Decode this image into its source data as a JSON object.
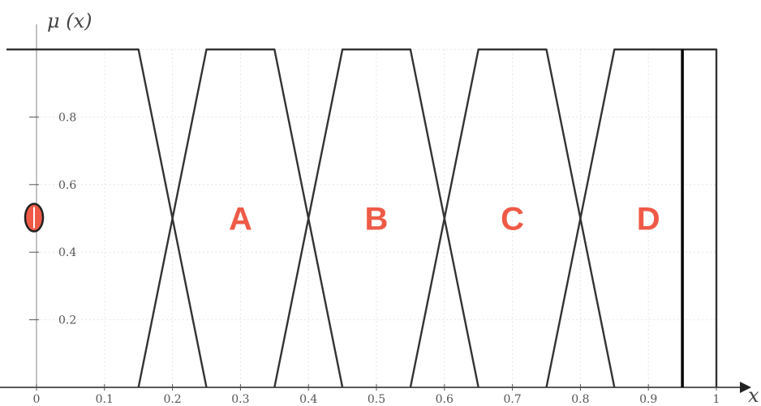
{
  "chart_data": {
    "type": "line",
    "xlabel": "x",
    "ylabel": "μ (x)",
    "xlim": [
      0,
      1
    ],
    "ylim": [
      0,
      1
    ],
    "x_ticks": [
      "0",
      "0.1",
      "0.2",
      "0.3",
      "0.4",
      "0.5",
      "0.6",
      "0.7",
      "0.8",
      "0.9",
      "1"
    ],
    "y_ticks": [
      "0.2",
      "0.4",
      "0.6",
      "0.8"
    ],
    "grid": true,
    "series": [
      {
        "name": "O",
        "x": [
          0,
          0.15,
          0.25
        ],
        "y": [
          1,
          1,
          0
        ]
      },
      {
        "name": "A",
        "x": [
          0.15,
          0.25,
          0.35,
          0.45
        ],
        "y": [
          0,
          1,
          1,
          0
        ]
      },
      {
        "name": "B",
        "x": [
          0.35,
          0.45,
          0.55,
          0.65
        ],
        "y": [
          0,
          1,
          1,
          0
        ]
      },
      {
        "name": "C",
        "x": [
          0.55,
          0.65,
          0.75,
          0.85
        ],
        "y": [
          0,
          1,
          1,
          0
        ]
      },
      {
        "name": "D",
        "x": [
          0.75,
          0.85,
          1,
          1
        ],
        "y": [
          0,
          1,
          1,
          0
        ]
      }
    ],
    "annotations": [
      {
        "text": "O",
        "x": 0,
        "y": 0.5,
        "color": "#ef5a47"
      },
      {
        "text": "A",
        "x": 0.3,
        "y": 0.5,
        "color": "#ef5a47"
      },
      {
        "text": "B",
        "x": 0.5,
        "y": 0.5,
        "color": "#ef5a47"
      },
      {
        "text": "C",
        "x": 0.7,
        "y": 0.5,
        "color": "#ef5a47"
      },
      {
        "text": "D",
        "x": 0.9,
        "y": 0.5,
        "color": "#ef5a47"
      }
    ],
    "vertical_marker": {
      "x": 0.95,
      "color": "#000000"
    },
    "colors": {
      "lines": "#333333",
      "labels": "#ef5a47",
      "grid": "#e6e6e6",
      "axis": "#999999"
    }
  }
}
